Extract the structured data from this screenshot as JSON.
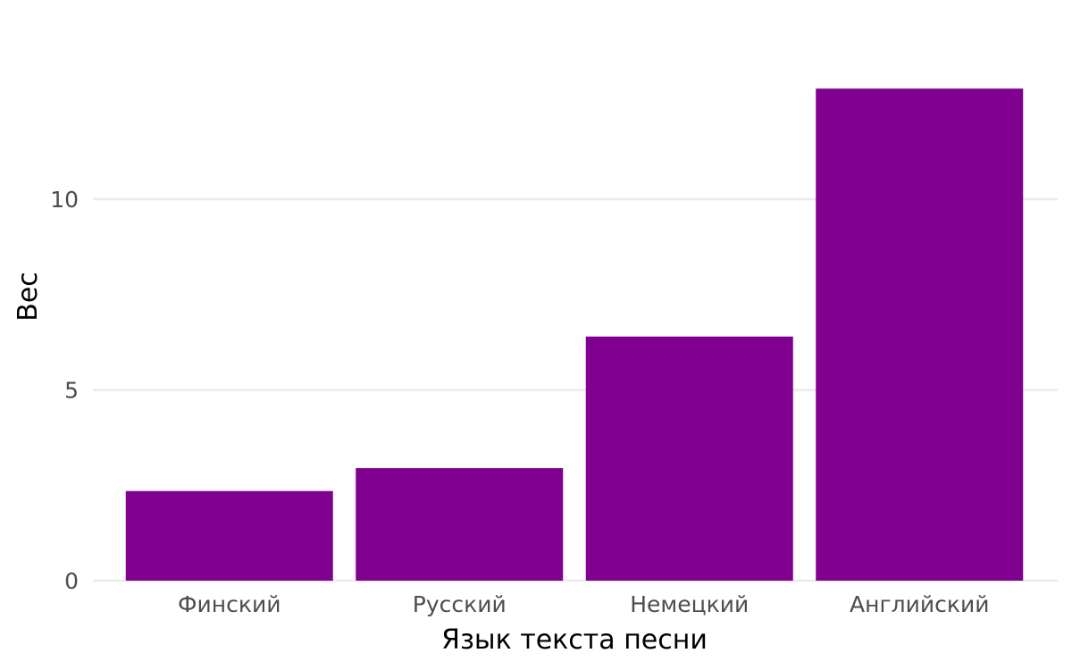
{
  "chart_data": {
    "type": "bar",
    "categories": [
      "Финский",
      "Русский",
      "Немецкий",
      "Английский"
    ],
    "values": [
      2.35,
      2.95,
      6.4,
      12.9
    ],
    "title": "",
    "xlabel": "Язык текста песни",
    "ylabel": "Вес",
    "ylim": [
      0,
      14
    ],
    "yticks": [
      0,
      5,
      10
    ],
    "ytick_labels": [
      "0",
      "5",
      "10"
    ],
    "grid": true,
    "legend": "none",
    "bar_color": "#800090",
    "grid_color": "#ebebeb"
  }
}
